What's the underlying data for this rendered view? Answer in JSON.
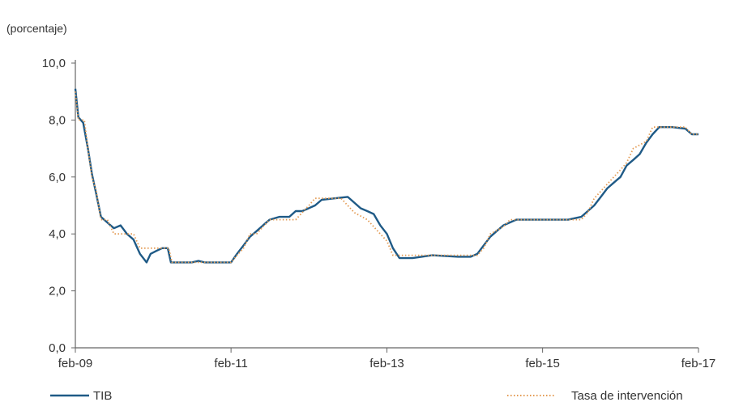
{
  "chart_data": {
    "type": "line",
    "unit_label": "(porcentaje)",
    "x_axis": {
      "type": "date",
      "range": [
        "2009-02-01",
        "2017-02-01"
      ],
      "tick_labels": [
        "feb-09",
        "feb-11",
        "feb-13",
        "feb-15",
        "feb-17"
      ],
      "tick_dates": [
        "2009-02-01",
        "2011-02-01",
        "2013-02-01",
        "2015-02-01",
        "2017-02-01"
      ]
    },
    "y_axis": {
      "range": [
        0,
        10
      ],
      "tick_values": [
        0,
        2,
        4,
        6,
        8,
        10
      ],
      "tick_labels": [
        "0,0",
        "2,0",
        "4,0",
        "6,0",
        "8,0",
        "10,0"
      ]
    },
    "grid": false,
    "legend_position": "bottom",
    "series": [
      {
        "name": "TIB",
        "color": "#1f5a86",
        "style": "solid",
        "points": [
          [
            "2009-02-01",
            9.1
          ],
          [
            "2009-02-15",
            8.1
          ],
          [
            "2009-03-10",
            7.9
          ],
          [
            "2009-04-01",
            7.0
          ],
          [
            "2009-04-20",
            6.1
          ],
          [
            "2009-05-10",
            5.4
          ],
          [
            "2009-06-01",
            4.6
          ],
          [
            "2009-07-01",
            4.4
          ],
          [
            "2009-08-01",
            4.2
          ],
          [
            "2009-09-01",
            4.3
          ],
          [
            "2009-10-01",
            4.0
          ],
          [
            "2009-11-01",
            3.8
          ],
          [
            "2009-12-01",
            3.3
          ],
          [
            "2010-01-01",
            3.0
          ],
          [
            "2010-01-20",
            3.3
          ],
          [
            "2010-02-15",
            3.4
          ],
          [
            "2010-03-15",
            3.5
          ],
          [
            "2010-04-10",
            3.5
          ],
          [
            "2010-04-25",
            3.0
          ],
          [
            "2010-06-01",
            3.0
          ],
          [
            "2010-08-01",
            3.0
          ],
          [
            "2010-09-01",
            3.05
          ],
          [
            "2010-10-01",
            3.0
          ],
          [
            "2011-01-01",
            3.0
          ],
          [
            "2011-02-01",
            3.0
          ],
          [
            "2011-03-01",
            3.3
          ],
          [
            "2011-04-01",
            3.6
          ],
          [
            "2011-05-01",
            3.9
          ],
          [
            "2011-06-01",
            4.1
          ],
          [
            "2011-07-01",
            4.3
          ],
          [
            "2011-08-01",
            4.5
          ],
          [
            "2011-09-15",
            4.6
          ],
          [
            "2011-11-01",
            4.6
          ],
          [
            "2011-12-01",
            4.8
          ],
          [
            "2012-01-01",
            4.8
          ],
          [
            "2012-03-01",
            5.0
          ],
          [
            "2012-04-01",
            5.2
          ],
          [
            "2012-06-01",
            5.25
          ],
          [
            "2012-08-01",
            5.3
          ],
          [
            "2012-09-01",
            5.1
          ],
          [
            "2012-10-01",
            4.9
          ],
          [
            "2012-11-01",
            4.8
          ],
          [
            "2012-12-01",
            4.7
          ],
          [
            "2013-01-01",
            4.3
          ],
          [
            "2013-02-01",
            4.0
          ],
          [
            "2013-03-01",
            3.5
          ],
          [
            "2013-04-01",
            3.15
          ],
          [
            "2013-06-01",
            3.15
          ],
          [
            "2013-09-01",
            3.25
          ],
          [
            "2014-01-01",
            3.2
          ],
          [
            "2014-03-01",
            3.2
          ],
          [
            "2014-04-01",
            3.3
          ],
          [
            "2014-05-01",
            3.6
          ],
          [
            "2014-06-01",
            3.9
          ],
          [
            "2014-07-01",
            4.1
          ],
          [
            "2014-08-01",
            4.3
          ],
          [
            "2014-10-01",
            4.5
          ],
          [
            "2015-01-01",
            4.5
          ],
          [
            "2015-06-01",
            4.5
          ],
          [
            "2015-08-01",
            4.6
          ],
          [
            "2015-09-01",
            4.8
          ],
          [
            "2015-10-01",
            5.0
          ],
          [
            "2015-11-01",
            5.3
          ],
          [
            "2015-12-01",
            5.6
          ],
          [
            "2016-01-01",
            5.8
          ],
          [
            "2016-02-01",
            6.0
          ],
          [
            "2016-03-01",
            6.4
          ],
          [
            "2016-04-01",
            6.6
          ],
          [
            "2016-05-01",
            6.8
          ],
          [
            "2016-06-01",
            7.2
          ],
          [
            "2016-07-01",
            7.5
          ],
          [
            "2016-08-01",
            7.75
          ],
          [
            "2016-10-01",
            7.75
          ],
          [
            "2016-12-01",
            7.7
          ],
          [
            "2017-01-01",
            7.5
          ],
          [
            "2017-02-01",
            7.5
          ]
        ]
      },
      {
        "name": "Tasa de intervención",
        "color": "#e39a52",
        "style": "dotted",
        "points": [
          [
            "2009-02-01",
            9.0
          ],
          [
            "2009-02-15",
            8.0
          ],
          [
            "2009-03-15",
            8.0
          ],
          [
            "2009-04-01",
            7.0
          ],
          [
            "2009-04-20",
            6.0
          ],
          [
            "2009-05-10",
            5.5
          ],
          [
            "2009-06-01",
            4.5
          ],
          [
            "2009-07-01",
            4.5
          ],
          [
            "2009-08-01",
            4.0
          ],
          [
            "2009-11-01",
            4.0
          ],
          [
            "2009-12-01",
            3.5
          ],
          [
            "2010-04-15",
            3.5
          ],
          [
            "2010-04-30",
            3.0
          ],
          [
            "2011-02-01",
            3.0
          ],
          [
            "2011-03-01",
            3.25
          ],
          [
            "2011-04-01",
            3.5
          ],
          [
            "2011-05-01",
            4.0
          ],
          [
            "2011-06-01",
            4.0
          ],
          [
            "2011-07-01",
            4.25
          ],
          [
            "2011-08-01",
            4.5
          ],
          [
            "2011-12-01",
            4.5
          ],
          [
            "2012-01-01",
            4.75
          ],
          [
            "2012-02-01",
            5.0
          ],
          [
            "2012-03-01",
            5.25
          ],
          [
            "2012-07-01",
            5.25
          ],
          [
            "2012-08-01",
            5.0
          ],
          [
            "2012-09-01",
            4.75
          ],
          [
            "2012-11-01",
            4.5
          ],
          [
            "2013-01-01",
            4.0
          ],
          [
            "2013-02-01",
            3.75
          ],
          [
            "2013-03-01",
            3.25
          ],
          [
            "2013-04-01",
            3.25
          ],
          [
            "2014-04-01",
            3.25
          ],
          [
            "2014-05-01",
            3.5
          ],
          [
            "2014-06-01",
            4.0
          ],
          [
            "2014-08-01",
            4.25
          ],
          [
            "2014-09-01",
            4.5
          ],
          [
            "2015-08-01",
            4.5
          ],
          [
            "2015-09-01",
            4.75
          ],
          [
            "2015-10-01",
            5.25
          ],
          [
            "2015-11-01",
            5.5
          ],
          [
            "2015-12-01",
            5.75
          ],
          [
            "2016-01-01",
            6.0
          ],
          [
            "2016-02-01",
            6.25
          ],
          [
            "2016-03-01",
            6.5
          ],
          [
            "2016-04-01",
            7.0
          ],
          [
            "2016-06-01",
            7.25
          ],
          [
            "2016-07-01",
            7.75
          ],
          [
            "2016-12-01",
            7.75
          ],
          [
            "2017-01-01",
            7.5
          ],
          [
            "2017-02-01",
            7.5
          ]
        ]
      }
    ]
  }
}
